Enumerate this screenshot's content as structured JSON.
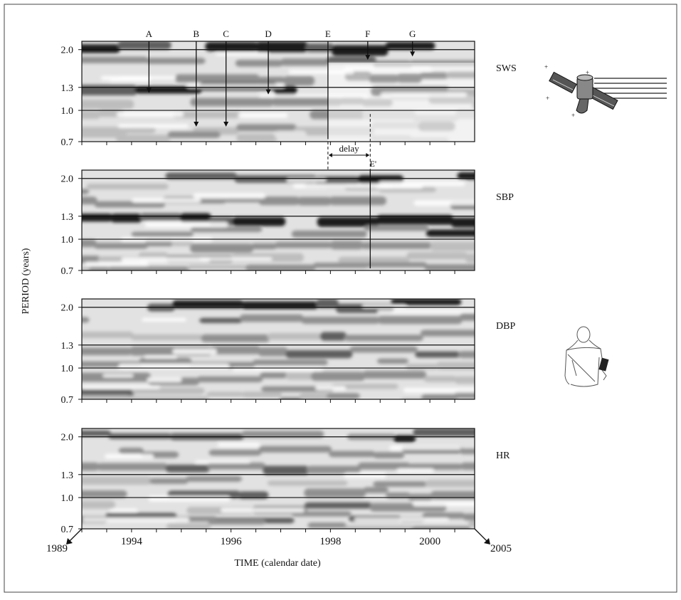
{
  "chart_data": {
    "type": "heatmap",
    "description_layout": "four stacked panels sharing a time axis",
    "y_axis_label": "PERIOD (years)",
    "x_axis_label": "TIME (calendar date)",
    "y_ticks": [
      2.0,
      1.3,
      1.0,
      0.7
    ],
    "y_tick_labels": [
      "2.0",
      "1.3",
      "1.0",
      "0.7"
    ],
    "y_scale": "log",
    "x_tick_labels": [
      "1994",
      "1996",
      "1998",
      "2000"
    ],
    "x_range_labels": [
      "1989",
      "2005"
    ],
    "x_visible_range": [
      1993.0,
      2000.9
    ],
    "panels": [
      {
        "name": "SWS",
        "events": [
          {
            "label": "A",
            "year": 1994.35,
            "period": 1.22
          },
          {
            "label": "B",
            "year": 1995.3,
            "period": 0.83
          },
          {
            "label": "C",
            "year": 1995.9,
            "period": 0.83
          },
          {
            "label": "D",
            "year": 1996.75,
            "period": 1.2
          },
          {
            "label": "E",
            "year": 1997.95,
            "period": 0.72
          },
          {
            "label": "F",
            "year": 1998.75,
            "period": 1.78
          },
          {
            "label": "G",
            "year": 1999.65,
            "period": 1.85
          }
        ],
        "delay_label": "delay",
        "delay_end_label": "E'",
        "delay_from_year": 1997.95,
        "delay_to_year": 1998.8
      },
      {
        "name": "SBP",
        "marker_year": 1998.8
      },
      {
        "name": "DBP"
      },
      {
        "name": "HR"
      }
    ]
  },
  "colors": {
    "dark": "#1a1a1a",
    "mid_dark": "#5e5e5e",
    "mid": "#909090",
    "light": "#bdbdbd",
    "lightest": "#e2e2e2",
    "background": "#ffffff"
  },
  "icons": [
    "satellite-icon",
    "person-with-armband-icon"
  ]
}
